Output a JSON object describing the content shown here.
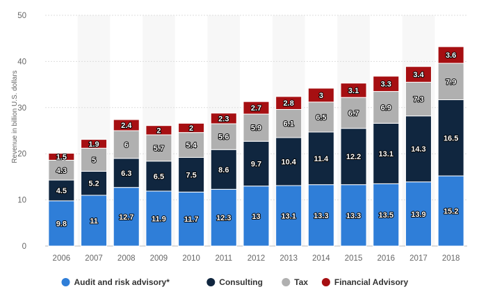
{
  "chart_data": {
    "type": "bar",
    "stacked": true,
    "title": "",
    "xlabel": "",
    "ylabel": "Revenue in billion U.S. dollars",
    "ylim": [
      0,
      50
    ],
    "yticks": [
      0,
      10,
      20,
      30,
      40,
      50
    ],
    "grid": true,
    "legend_position": "bottom",
    "categories": [
      "2006",
      "2007",
      "2008",
      "2009",
      "2010",
      "2011",
      "2012",
      "2013",
      "2014",
      "2015",
      "2016",
      "2017",
      "2018"
    ],
    "series": [
      {
        "name": "Audit and risk advisory*",
        "color": "#2f7ed8",
        "values": [
          9.8,
          11,
          12.7,
          11.9,
          11.7,
          12.3,
          13,
          13.1,
          13.3,
          13.3,
          13.5,
          13.9,
          15.2
        ]
      },
      {
        "name": "Consulting",
        "color": "#10263f",
        "values": [
          4.5,
          5.2,
          6.3,
          6.5,
          7.5,
          8.6,
          9.7,
          10.4,
          11.4,
          12.2,
          13.1,
          14.3,
          16.5
        ]
      },
      {
        "name": "Tax",
        "color": "#b0b0b0",
        "values": [
          4.3,
          5,
          6,
          5.7,
          5.4,
          5.6,
          5.9,
          6.1,
          6.5,
          6.7,
          6.9,
          7.3,
          7.9
        ]
      },
      {
        "name": "Financial Advisory",
        "color": "#a60f12",
        "values": [
          1.5,
          1.9,
          2.4,
          2,
          2,
          2.3,
          2.7,
          2.8,
          3,
          3.1,
          3.3,
          3.4,
          3.6
        ]
      }
    ]
  }
}
